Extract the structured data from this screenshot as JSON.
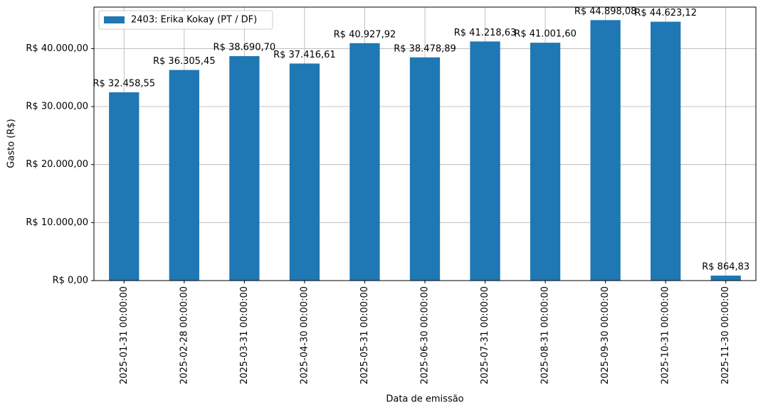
{
  "chart_data": {
    "type": "bar",
    "xlabel": "Data de emissão",
    "ylabel": "Gasto (R$)",
    "categories": [
      "2025-01-31 00:00:00",
      "2025-02-28 00:00:00",
      "2025-03-31 00:00:00",
      "2025-04-30 00:00:00",
      "2025-05-31 00:00:00",
      "2025-06-30 00:00:00",
      "2025-07-31 00:00:00",
      "2025-08-31 00:00:00",
      "2025-09-30 00:00:00",
      "2025-10-31 00:00:00",
      "2025-11-30 00:00:00"
    ],
    "series": [
      {
        "name": "2403: Erika Kokay (PT / DF)",
        "color": "#1f77b4",
        "values": [
          32458.55,
          36305.45,
          38690.7,
          37416.61,
          40927.92,
          38478.89,
          41218.63,
          41001.6,
          44898.08,
          44623.12,
          864.83
        ],
        "value_labels": [
          "R$ 32.458,55",
          "R$ 36.305,45",
          "R$ 38.690,70",
          "R$ 37.416,61",
          "R$ 40.927,92",
          "R$ 38.478,89",
          "R$ 41.218,63",
          "R$ 41.001,60",
          "R$ 44.898,08",
          "R$ 44.623,12",
          "R$ 864,83"
        ]
      }
    ],
    "ylim": [
      0,
      47143
    ],
    "yticks": [
      {
        "value": 0,
        "label": "R$ 0,00"
      },
      {
        "value": 10000,
        "label": "R$ 10.000,00"
      },
      {
        "value": 20000,
        "label": "R$ 20.000,00"
      },
      {
        "value": 30000,
        "label": "R$ 30.000,00"
      },
      {
        "value": 40000,
        "label": "R$ 40.000,00"
      }
    ],
    "grid": true,
    "legend": "upper left"
  }
}
